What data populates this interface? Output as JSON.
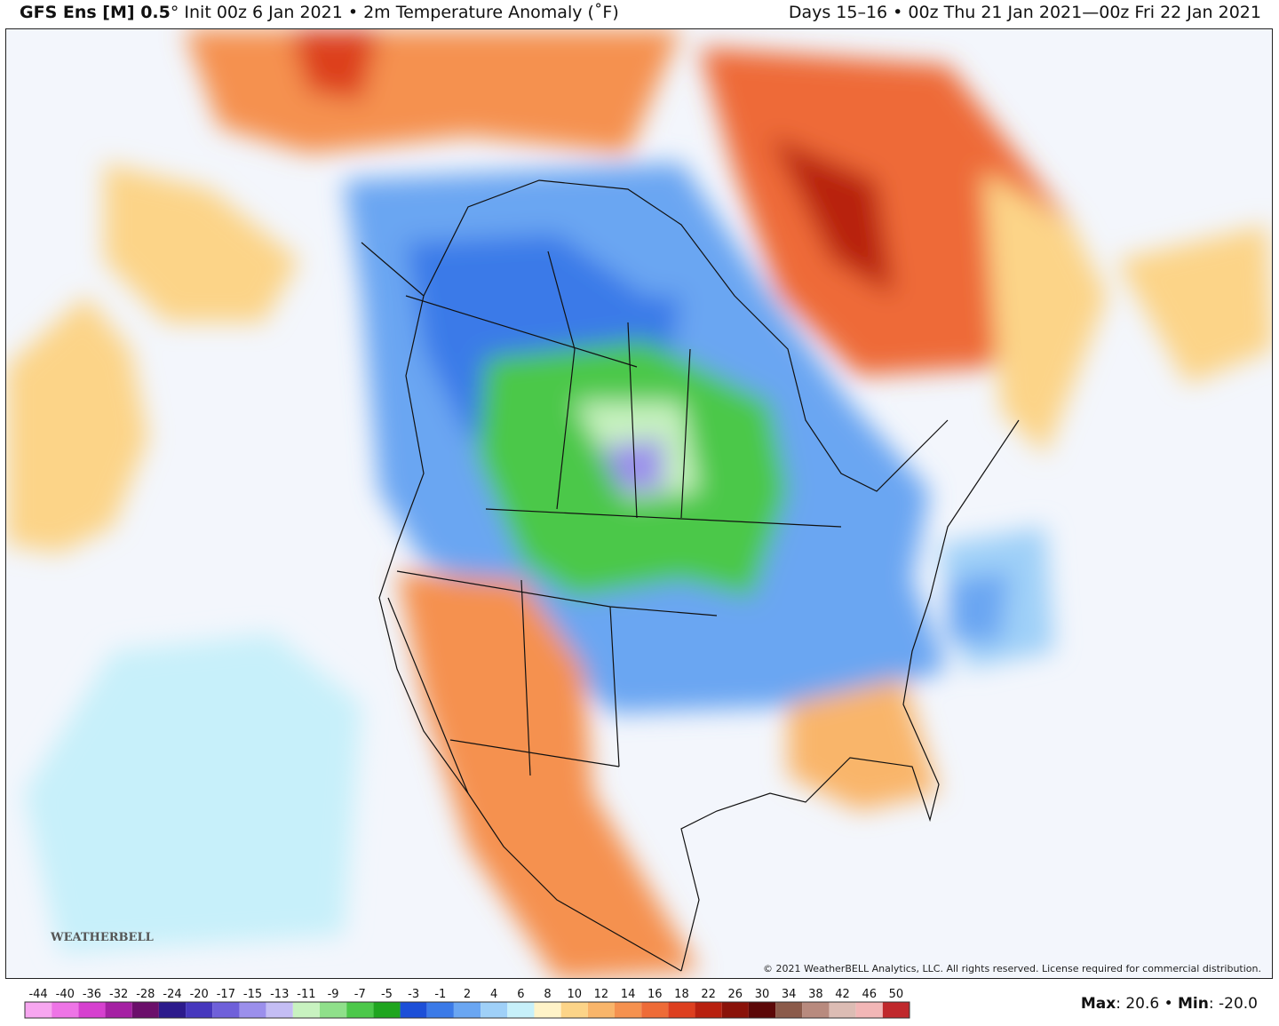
{
  "header": {
    "model": "GFS Ens [M] 0.5",
    "description": "° Init 00z 6 Jan 2021 • 2m Temperature Anomaly (˚F)",
    "valid": "Days 15–16 • 00z Thu 21 Jan 2021—00z Fri 22 Jan 2021"
  },
  "colorbar": {
    "levels": [
      -44,
      -40,
      -36,
      -32,
      -28,
      -24,
      -20,
      -17,
      -15,
      -13,
      -11,
      -9,
      -7,
      -5,
      -3,
      -1,
      2,
      4,
      6,
      8,
      10,
      12,
      14,
      16,
      18,
      22,
      26,
      30,
      34,
      38,
      42,
      46,
      50
    ],
    "colors": [
      "#f7a6f0",
      "#ee74e6",
      "#d640cf",
      "#a520a3",
      "#6b0f6b",
      "#2c1a8c",
      "#4637bd",
      "#6f60da",
      "#9b8fec",
      "#c4bdf4",
      "#c8f2c0",
      "#8fe08a",
      "#4cc84a",
      "#1fa51f",
      "#1c4fd8",
      "#3b7ae8",
      "#6aa6f2",
      "#9fd0f8",
      "#c7f0fa",
      "#fff3c8",
      "#fcd488",
      "#f9b56a",
      "#f5914f",
      "#ee6b37",
      "#dd3f1f",
      "#b8200f",
      "#8a1209",
      "#5c0808",
      "#8b5a4a",
      "#b88a7e",
      "#dcbcb4",
      "#f2b6b6",
      "#c0282c"
    ]
  },
  "stats": {
    "max_label": "Max",
    "max_value": ": 20.6",
    "separator": " • ",
    "min_label": "Min",
    "min_value": ": -20.0"
  },
  "copyright": "© 2021 WeatherBELL Analytics, LLC. All rights reserved. License required for commercial distribution.",
  "logo": "WEATHERBELL"
}
